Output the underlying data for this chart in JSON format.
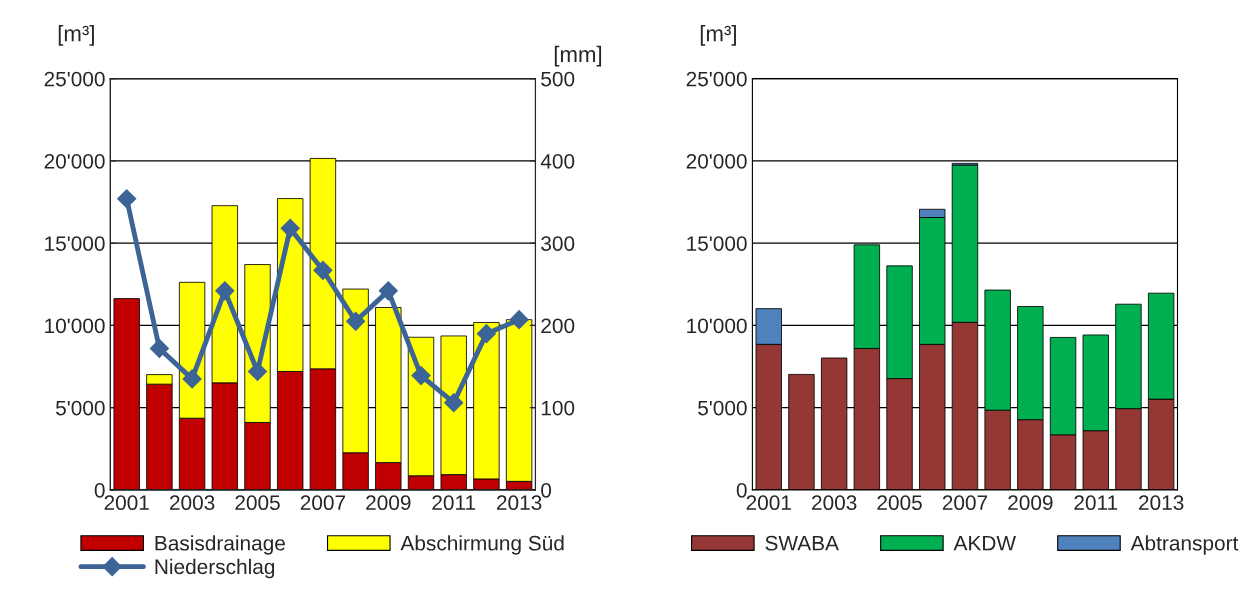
{
  "chart_data": [
    {
      "type": "bar",
      "stacked": true,
      "categories": [
        "2001",
        null,
        "2003",
        null,
        "2005",
        null,
        "2007",
        null,
        "2009",
        null,
        "2011",
        null,
        "2013"
      ],
      "ylabel": "[m³]",
      "y2label": "[mm]",
      "series": [
        {
          "name": "Basisdrainage",
          "color": "#c00000",
          "values": [
            11630,
            6430,
            4360,
            6510,
            4100,
            7200,
            7360,
            2260,
            1660,
            860,
            930,
            670,
            520
          ]
        },
        {
          "name": "Abschirmung Süd",
          "color": "#ffff00",
          "values": [
            null,
            580,
            8260,
            10770,
            9600,
            10510,
            12790,
            9950,
            9430,
            8420,
            8430,
            9510,
            9830
          ]
        },
        {
          "name": "Niederschlag",
          "type": "line",
          "axis": "y2",
          "color": "#3d6496",
          "marker": "diamond",
          "values": [
            354,
            172,
            135,
            242,
            144,
            318,
            267,
            205,
            242,
            139,
            106,
            190,
            207
          ]
        }
      ],
      "ylim": [
        0,
        25000
      ],
      "yticks": [
        0,
        {
          "value": 5000,
          "label": "5'000"
        },
        {
          "value": 10000,
          "label": "10'000"
        },
        {
          "value": 15000,
          "label": "15'000"
        },
        {
          "value": 20000,
          "label": "20'000"
        },
        {
          "value": 25000,
          "label": "25'000"
        }
      ],
      "y2lim": [
        0,
        500
      ],
      "y2ticks": [
        0,
        100,
        200,
        300,
        400,
        500
      ],
      "grid": "y",
      "legend": "bottom"
    },
    {
      "type": "bar",
      "stacked": true,
      "categories": [
        "2001",
        null,
        "2003",
        null,
        "2005",
        null,
        "2007",
        null,
        "2009",
        null,
        "2011",
        null,
        "2013"
      ],
      "ylabel": "[m³]",
      "series": [
        {
          "name": "SWABA",
          "color": "#953735",
          "values": [
            8850,
            7020,
            8020,
            8600,
            6770,
            8850,
            10190,
            4850,
            4270,
            3350,
            3600,
            4940,
            5520
          ]
        },
        {
          "name": "AKDW",
          "color": "#00b050",
          "values": [
            null,
            null,
            null,
            6300,
            6850,
            7710,
            9560,
            7300,
            6880,
            5920,
            5820,
            6350,
            6440
          ]
        },
        {
          "name": "Abtransport",
          "color": "#4f81bd",
          "values": [
            2170,
            null,
            null,
            null,
            null,
            500,
            100,
            null,
            null,
            null,
            null,
            null,
            null
          ]
        }
      ],
      "ylim": [
        0,
        25000
      ],
      "yticks": [
        0,
        {
          "value": 5000,
          "label": "5'000"
        },
        {
          "value": 10000,
          "label": "10'000"
        },
        {
          "value": 15000,
          "label": "15'000"
        },
        {
          "value": 20000,
          "label": "20'000"
        },
        {
          "value": 25000,
          "label": "25'000"
        }
      ],
      "grid": "y",
      "legend": "bottom"
    }
  ]
}
